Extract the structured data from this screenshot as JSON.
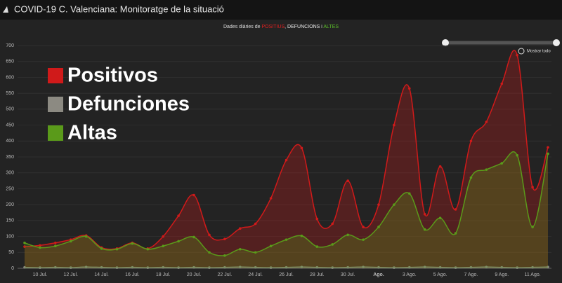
{
  "header": {
    "title": "COVID-19 C. Valenciana: Monitoratge de la situació"
  },
  "controls": {
    "reset_zoom": "Mostrar todo"
  },
  "chart_data": {
    "type": "line",
    "subtitle": [
      "Dades diàries de ",
      "POSITIUS",
      ", ",
      "DEFUNCIONS",
      " i ",
      "ALTES"
    ],
    "categories": [
      null,
      "10 Jul.",
      null,
      "12 Jul.",
      null,
      "14 Jul.",
      null,
      "16 Jul.",
      null,
      "18 Jul.",
      null,
      "20 Jul.",
      null,
      "22 Jul.",
      null,
      "24 Jul.",
      null,
      "26 Jul.",
      null,
      "28 Jul.",
      null,
      "30 Jul.",
      null,
      "Ago.",
      null,
      "3 Ago.",
      null,
      "5 Ago.",
      null,
      "7 Ago.",
      null,
      "9 Ago.",
      null,
      "11 Ago.",
      null
    ],
    "series": [
      {
        "name": "Positivos",
        "color": "#d01a1a",
        "values": [
          68,
          72,
          80,
          90,
          103,
          65,
          62,
          80,
          62,
          100,
          165,
          230,
          105,
          92,
          125,
          140,
          220,
          340,
          378,
          155,
          140,
          275,
          130,
          200,
          450,
          565,
          170,
          320,
          185,
          400,
          460,
          580,
          670,
          255,
          380
        ]
      },
      {
        "name": "Defunciones",
        "color": "#8c8a82",
        "values": [
          3,
          2,
          3,
          2,
          4,
          3,
          2,
          3,
          2,
          3,
          2,
          3,
          2,
          3,
          4,
          3,
          2,
          3,
          4,
          3,
          2,
          3,
          4,
          3,
          2,
          3,
          4,
          3,
          2,
          3,
          4,
          3,
          2,
          3,
          4
        ]
      },
      {
        "name": "Altas",
        "color": "#5a9a1a",
        "values": [
          80,
          65,
          70,
          85,
          100,
          62,
          60,
          78,
          60,
          70,
          85,
          98,
          50,
          40,
          60,
          50,
          70,
          90,
          102,
          68,
          75,
          105,
          90,
          130,
          200,
          235,
          122,
          158,
          110,
          285,
          310,
          330,
          355,
          130,
          360
        ]
      }
    ],
    "ylim": [
      0,
      700
    ],
    "yticks": [
      0,
      50,
      100,
      150,
      200,
      250,
      300,
      350,
      400,
      450,
      500,
      550,
      600,
      650,
      700
    ],
    "grid": true
  }
}
